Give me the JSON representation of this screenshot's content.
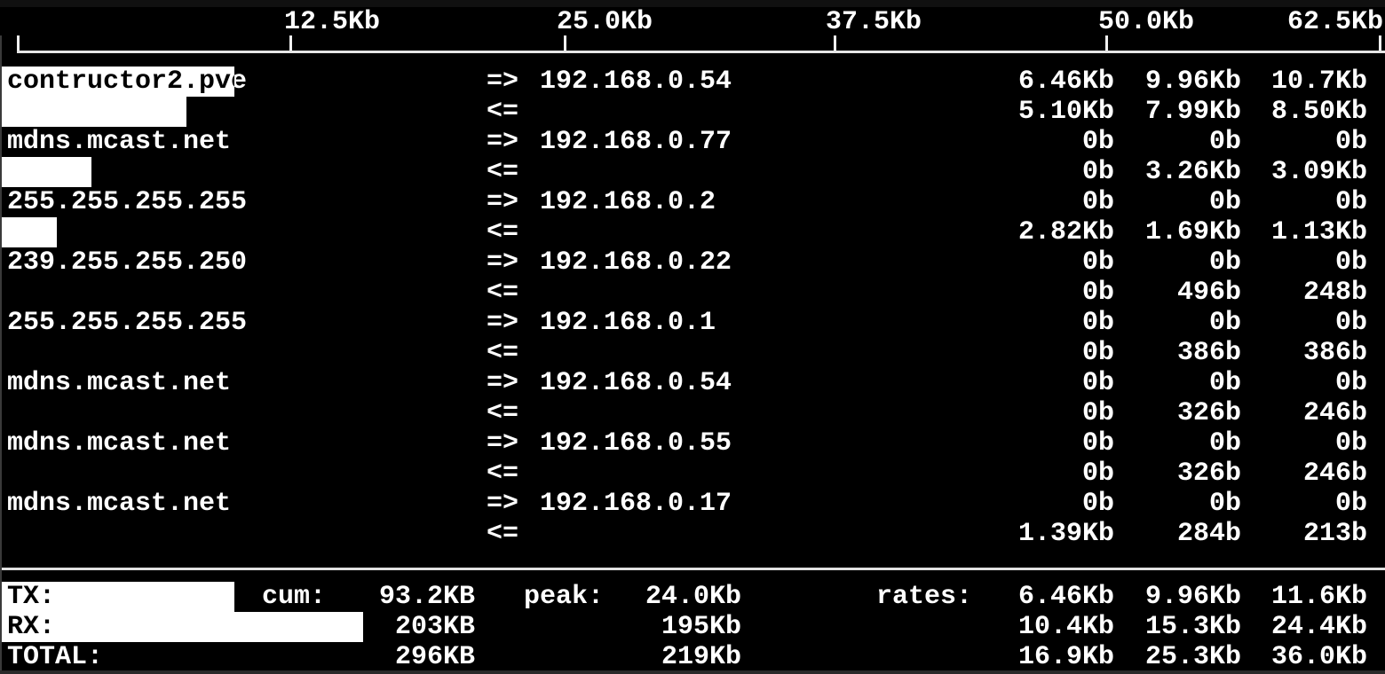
{
  "colors": {
    "background": "#000000",
    "text": "#ffffff",
    "bar": "#ffffff"
  },
  "scale": {
    "labels": [
      "12.5Kb",
      "25.0Kb",
      "37.5Kb",
      "50.0Kb",
      "62.5Kb"
    ]
  },
  "lines": [
    {
      "host": "contructor2.pve",
      "arrow": "=>",
      "peer": "192.168.0.54",
      "r2": "6.46Kb",
      "r10": "9.96Kb",
      "r40": "10.7Kb",
      "bar": 262,
      "inv": 256
    },
    {
      "host": "",
      "arrow": "<=",
      "peer": "",
      "r2": "5.10Kb",
      "r10": "7.99Kb",
      "r40": "8.50Kb",
      "bar": 208,
      "inv": 202
    },
    {
      "host": "mdns.mcast.net",
      "arrow": "=>",
      "peer": "192.168.0.77",
      "r2": "0b",
      "r10": "0b",
      "r40": "0b",
      "bar": 0,
      "inv": 0
    },
    {
      "host": "",
      "arrow": "<=",
      "peer": "",
      "r2": "0b",
      "r10": "3.26Kb",
      "r40": "3.09Kb",
      "bar": 101,
      "inv": 95
    },
    {
      "host": "255.255.255.255",
      "arrow": "=>",
      "peer": "192.168.0.2",
      "r2": "0b",
      "r10": "0b",
      "r40": "0b",
      "bar": 0,
      "inv": 0
    },
    {
      "host": "",
      "arrow": "<=",
      "peer": "",
      "r2": "2.82Kb",
      "r10": "1.69Kb",
      "r40": "1.13Kb",
      "bar": 62,
      "inv": 56
    },
    {
      "host": "239.255.255.250",
      "arrow": "=>",
      "peer": "192.168.0.22",
      "r2": "0b",
      "r10": "0b",
      "r40": "0b",
      "bar": 0,
      "inv": 0
    },
    {
      "host": "",
      "arrow": "<=",
      "peer": "",
      "r2": "0b",
      "r10": "496b",
      "r40": "248b",
      "bar": 0,
      "inv": 0
    },
    {
      "host": "255.255.255.255",
      "arrow": "=>",
      "peer": "192.168.0.1",
      "r2": "0b",
      "r10": "0b",
      "r40": "0b",
      "bar": 0,
      "inv": 0
    },
    {
      "host": "",
      "arrow": "<=",
      "peer": "",
      "r2": "0b",
      "r10": "386b",
      "r40": "386b",
      "bar": 0,
      "inv": 0
    },
    {
      "host": "mdns.mcast.net",
      "arrow": "=>",
      "peer": "192.168.0.54",
      "r2": "0b",
      "r10": "0b",
      "r40": "0b",
      "bar": 0,
      "inv": 0
    },
    {
      "host": "",
      "arrow": "<=",
      "peer": "",
      "r2": "0b",
      "r10": "326b",
      "r40": "246b",
      "bar": 0,
      "inv": 0
    },
    {
      "host": "mdns.mcast.net",
      "arrow": "=>",
      "peer": "192.168.0.55",
      "r2": "0b",
      "r10": "0b",
      "r40": "0b",
      "bar": 0,
      "inv": 0
    },
    {
      "host": "",
      "arrow": "<=",
      "peer": "",
      "r2": "0b",
      "r10": "326b",
      "r40": "246b",
      "bar": 0,
      "inv": 0
    },
    {
      "host": "mdns.mcast.net",
      "arrow": "=>",
      "peer": "192.168.0.17",
      "r2": "0b",
      "r10": "0b",
      "r40": "0b",
      "bar": 0,
      "inv": 0
    },
    {
      "host": "",
      "arrow": "<=",
      "peer": "",
      "r2": "1.39Kb",
      "r10": "284b",
      "r40": "213b",
      "bar": 0,
      "inv": 0
    }
  ],
  "summary": [
    {
      "label": "TX:",
      "cum_label": "cum:",
      "cum": "93.2KB",
      "peak_label": "peak:",
      "peak": "24.0Kb",
      "rates_label": "rates:",
      "r2": "6.46Kb",
      "r10": "9.96Kb",
      "r40": "11.6Kb",
      "bar": 262,
      "inv": 256
    },
    {
      "label": "RX:",
      "cum_label": "",
      "cum": "203KB",
      "peak_label": "",
      "peak": "195Kb",
      "rates_label": "",
      "r2": "10.4Kb",
      "r10": "15.3Kb",
      "r40": "24.4Kb",
      "bar": 407,
      "inv": 401
    },
    {
      "label": "TOTAL:",
      "cum_label": "",
      "cum": "296KB",
      "peak_label": "",
      "peak": "219Kb",
      "rates_label": "",
      "r2": "16.9Kb",
      "r10": "25.3Kb",
      "r40": "36.0Kb",
      "bar": 0,
      "inv": 0
    }
  ]
}
